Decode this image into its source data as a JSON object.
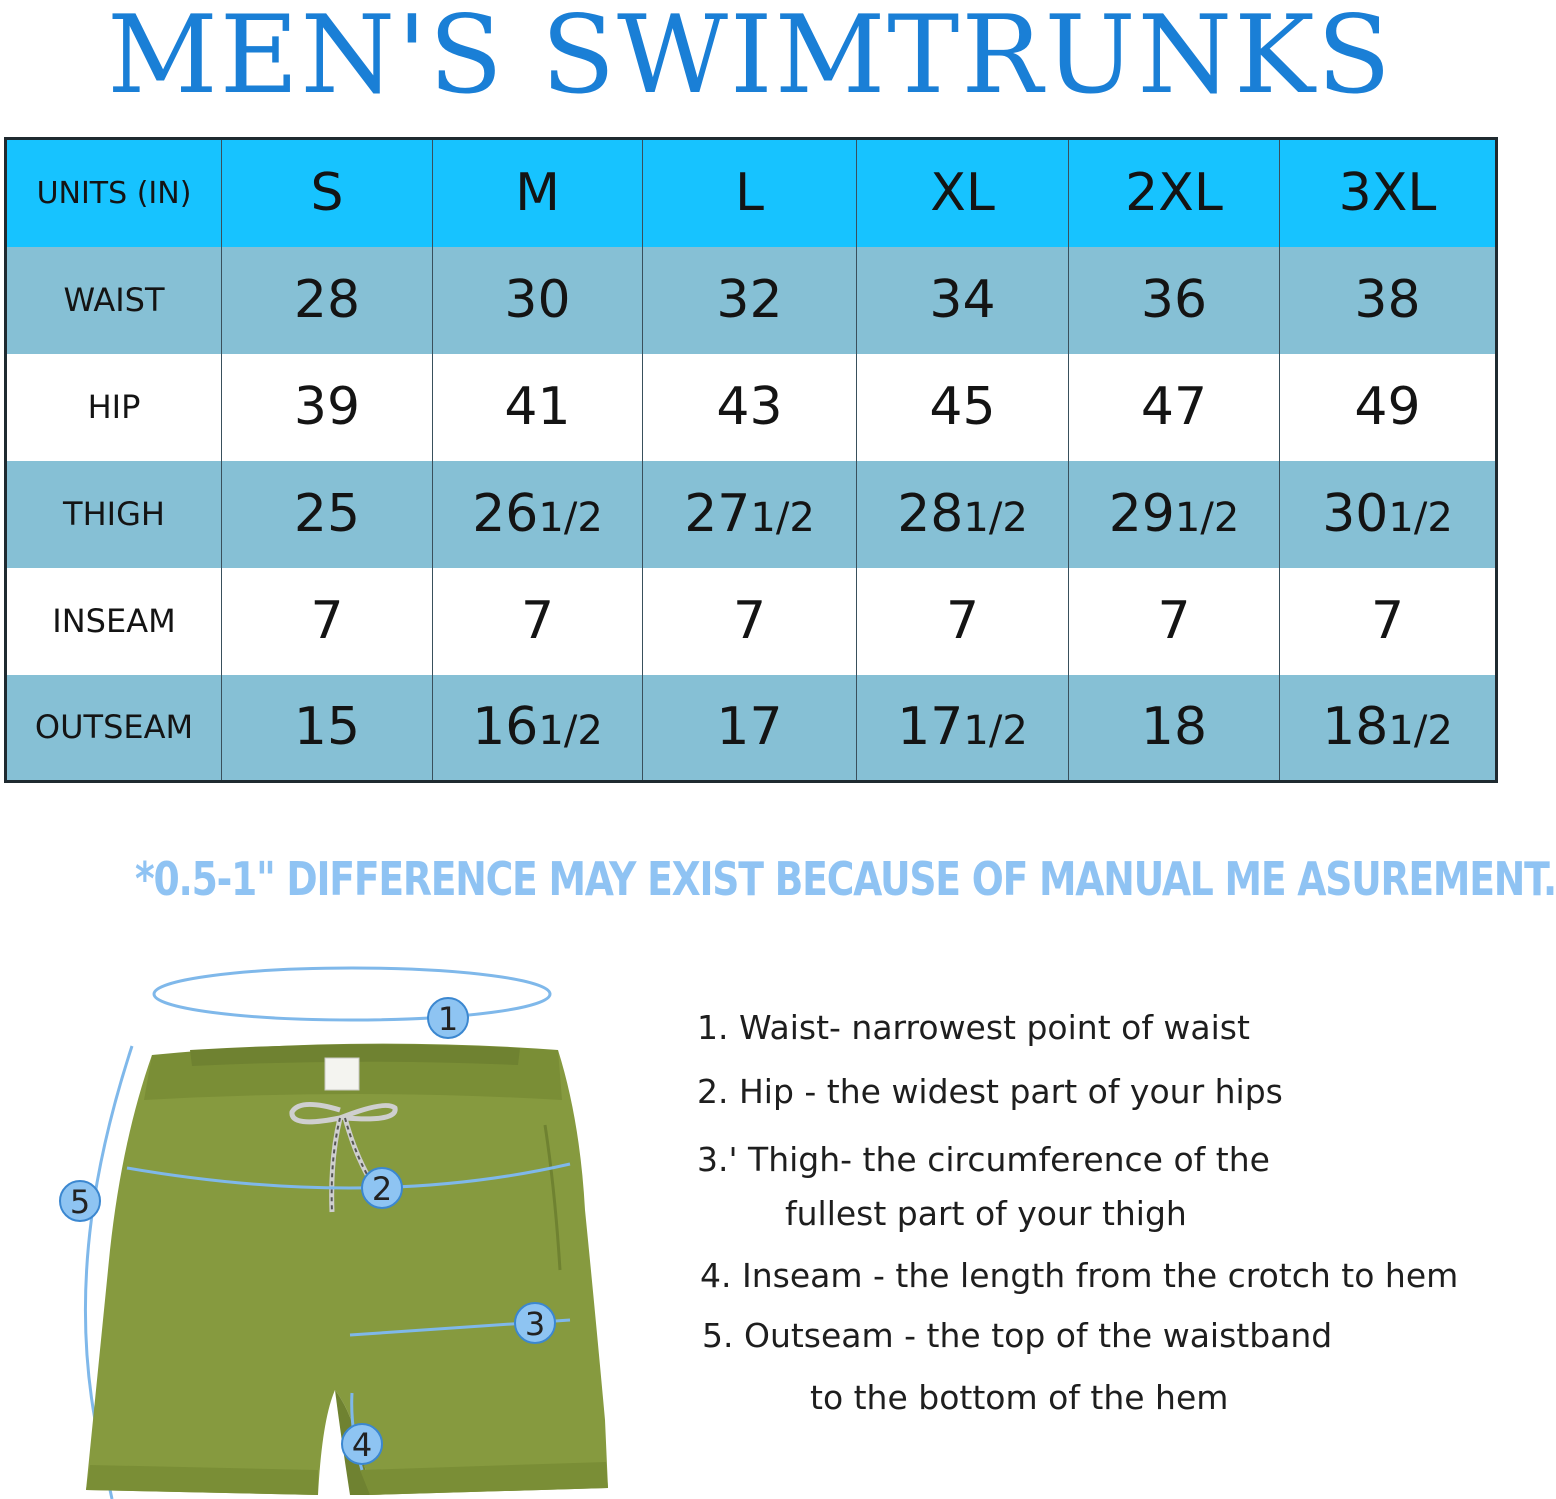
{
  "title": "MEN'S SWIMTRUNKS",
  "size_chart": {
    "units_label": "UNITS (IN)",
    "sizes": [
      "S",
      "M",
      "L",
      "XL",
      "2XL",
      "3XL"
    ],
    "rows": [
      {
        "label": "WAIST",
        "values": [
          "28",
          "30",
          "32",
          "34",
          "36",
          "38"
        ],
        "fractions": [
          "",
          "",
          "",
          "",
          "",
          ""
        ]
      },
      {
        "label": "HIP",
        "values": [
          "39",
          "41",
          "43",
          "45",
          "47",
          "49"
        ],
        "fractions": [
          "",
          "",
          "",
          "",
          "",
          ""
        ]
      },
      {
        "label": "THIGH",
        "values": [
          "25",
          "26",
          "27",
          "28",
          "29",
          "30"
        ],
        "fractions": [
          "",
          "1/2",
          "1/2",
          "1/2",
          "1/2",
          "1/2"
        ]
      },
      {
        "label": "INSEAM",
        "values": [
          "7",
          "7",
          "7",
          "7",
          "7",
          "7"
        ],
        "fractions": [
          "",
          "",
          "",
          "",
          "",
          ""
        ]
      },
      {
        "label": "OUTSEAM",
        "values": [
          "15",
          "16",
          "17",
          "17",
          "18",
          "18"
        ],
        "fractions": [
          "",
          "1/2",
          "",
          "1/2",
          "",
          "1/2"
        ]
      }
    ]
  },
  "note": "*0.5-1\" DIFFERENCE MAY EXIST BECAUSE OF MANUAL ME ASUREMENT.",
  "diagram": {
    "markers": [
      "1",
      "2",
      "3",
      "4",
      "5"
    ],
    "colors": {
      "shorts": "#869a3f",
      "shorts_shadow": "#6f8231",
      "lines": "#7fb8ea",
      "marker_fill": "#8ec4f2"
    }
  },
  "instructions": [
    "1. Waist- narrowest point of waist",
    "2. Hip - the widest part of your hips",
    "3.' Thigh- the circumference of the",
    "fullest part of your thigh",
    "4. Inseam - the length from the crotch to hem",
    "5. Outseam - the top of the waistband",
    "to the bottom of the hem"
  ]
}
